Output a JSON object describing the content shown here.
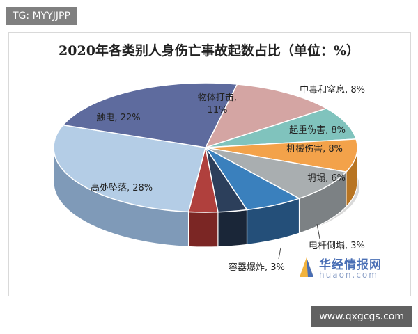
{
  "watermark_top": "TG: MYYJJPP",
  "watermark_bottom": "www.qxgcgs.com",
  "brand": {
    "name": "华经情报网",
    "domain": "huaon.com"
  },
  "chart_data": {
    "type": "pie",
    "title": "2020年各类别人身伤亡事故起数占比（单位：%）",
    "slices": [
      {
        "label": "物体打击",
        "value": 11,
        "display": "物体打击,\n11%",
        "color": "#d4a5a3",
        "side": "#a57c7a"
      },
      {
        "label": "中毒和窒息",
        "value": 8,
        "display": "中毒和窒息, 8%",
        "color": "#80c3bd",
        "side": "#5b948f"
      },
      {
        "label": "起重伤害",
        "value": 8,
        "display": "起重伤害, 8%",
        "color": "#f3a24a",
        "side": "#b87523"
      },
      {
        "label": "机械伤害",
        "value": 8,
        "display": "机械伤害, 8%",
        "color": "#a9aeb0",
        "side": "#7c8184"
      },
      {
        "label": "坍塌",
        "value": 6,
        "display": "坍塌, 6%",
        "color": "#3a80bd",
        "side": "#244f79"
      },
      {
        "label": "电杆倒塌",
        "value": 3,
        "display": "电杆倒塌, 3%",
        "color": "#2c3f5b",
        "side": "#1a2638"
      },
      {
        "label": "容器爆炸",
        "value": 3,
        "display": "容器爆炸, 3%",
        "color": "#b0403d",
        "side": "#7b2624"
      },
      {
        "label": "高处坠落",
        "value": 28,
        "display": "高处坠落, 28%",
        "color": "#b4cde6",
        "side": "#7f9ab8"
      },
      {
        "label": "触电",
        "value": 22,
        "display": "触电, 22%",
        "color": "#5e6b9e",
        "side": "#3f4a73"
      }
    ]
  }
}
